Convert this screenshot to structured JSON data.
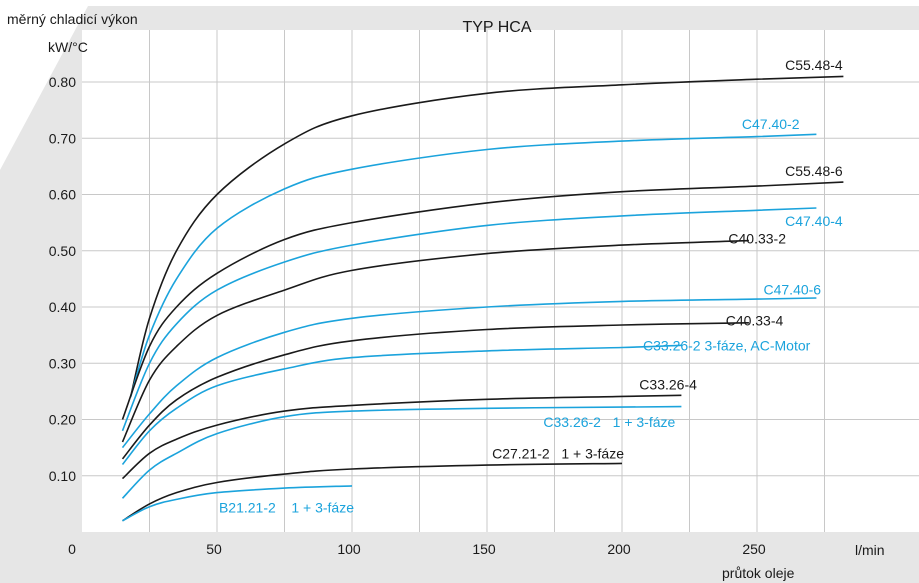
{
  "chart_data": {
    "type": "line",
    "title": "TYP HCA",
    "ylabel": "měrný chladicí výkon",
    "yunit": "kW/°C",
    "xlabel": "průtok oleje",
    "xunit": "l/min",
    "xlim": [
      0,
      280
    ],
    "ylim": [
      0,
      0.84
    ],
    "xticks": [
      0,
      50,
      100,
      150,
      200,
      250
    ],
    "xtick_labels": [
      "0",
      "50",
      "100",
      "150",
      "200",
      "250"
    ],
    "yticks": [
      0.1,
      0.2,
      0.3,
      0.4,
      0.5,
      0.6,
      0.7,
      0.8
    ],
    "ytick_labels": [
      "0.10",
      "0.20",
      "0.30",
      "0.40",
      "0.50",
      "0.60",
      "0.70",
      "0.80"
    ],
    "grid": true,
    "colors": {
      "black": "#1a1a1a",
      "blue": "#1ba3dc",
      "grid": "#c8c8c8",
      "background_shape": "#e6e6e6"
    },
    "series": [
      {
        "name": "C55.48-4",
        "color": "black",
        "x": [
          18,
          25,
          35,
          50,
          75,
          100,
          150,
          200,
          250,
          282
        ],
        "y": [
          0.24,
          0.38,
          0.5,
          0.6,
          0.69,
          0.74,
          0.78,
          0.795,
          0.805,
          0.81
        ]
      },
      {
        "name": "C47.40-2",
        "color": "blue",
        "x": [
          18,
          25,
          35,
          50,
          75,
          100,
          150,
          200,
          250,
          272
        ],
        "y": [
          0.24,
          0.35,
          0.45,
          0.54,
          0.61,
          0.645,
          0.68,
          0.695,
          0.703,
          0.707
        ]
      },
      {
        "name": "C55.48-6",
        "color": "black",
        "x": [
          15,
          25,
          35,
          50,
          75,
          100,
          150,
          200,
          250,
          282
        ],
        "y": [
          0.2,
          0.33,
          0.4,
          0.46,
          0.52,
          0.55,
          0.585,
          0.605,
          0.615,
          0.622
        ]
      },
      {
        "name": "C47.40-4",
        "color": "blue",
        "x": [
          15,
          25,
          35,
          50,
          75,
          100,
          150,
          200,
          250,
          272
        ],
        "y": [
          0.18,
          0.3,
          0.37,
          0.43,
          0.48,
          0.51,
          0.545,
          0.562,
          0.572,
          0.576
        ]
      },
      {
        "name": "C40.33-2",
        "color": "black",
        "x": [
          15,
          25,
          35,
          50,
          75,
          100,
          150,
          200,
          247
        ],
        "y": [
          0.16,
          0.27,
          0.33,
          0.385,
          0.43,
          0.465,
          0.495,
          0.51,
          0.518
        ]
      },
      {
        "name": "C47.40-6",
        "color": "blue",
        "x": [
          15,
          25,
          35,
          50,
          75,
          100,
          150,
          200,
          250,
          272
        ],
        "y": [
          0.15,
          0.21,
          0.26,
          0.31,
          0.355,
          0.38,
          0.4,
          0.41,
          0.414,
          0.416
        ]
      },
      {
        "name": "C40.33-4",
        "color": "black",
        "x": [
          15,
          25,
          35,
          50,
          75,
          100,
          150,
          200,
          247
        ],
        "y": [
          0.13,
          0.19,
          0.235,
          0.275,
          0.315,
          0.34,
          0.36,
          0.368,
          0.372
        ]
      },
      {
        "name": "C33.26-2 3-fáze, AC-Motor",
        "color": "blue",
        "x": [
          15,
          25,
          35,
          50,
          75,
          100,
          150,
          200,
          222
        ],
        "y": [
          0.12,
          0.18,
          0.22,
          0.26,
          0.29,
          0.31,
          0.322,
          0.328,
          0.332
        ]
      },
      {
        "name": "C33.26-4",
        "color": "black",
        "x": [
          15,
          25,
          35,
          50,
          75,
          100,
          150,
          200,
          222
        ],
        "y": [
          0.095,
          0.14,
          0.165,
          0.19,
          0.215,
          0.225,
          0.236,
          0.241,
          0.243
        ]
      },
      {
        "name": "C33.26-2 1 + 3-fáze",
        "color": "blue",
        "x": [
          15,
          25,
          35,
          50,
          75,
          100,
          150,
          200,
          222
        ],
        "y": [
          0.06,
          0.11,
          0.14,
          0.175,
          0.205,
          0.215,
          0.22,
          0.222,
          0.223
        ]
      },
      {
        "name": "C27.21-2 1 + 3-fáze",
        "color": "black",
        "x": [
          15,
          25,
          35,
          50,
          75,
          100,
          150,
          200
        ],
        "y": [
          0.02,
          0.05,
          0.07,
          0.088,
          0.103,
          0.112,
          0.119,
          0.122
        ]
      },
      {
        "name": "B21.21-2 1 + 3-fáze",
        "color": "blue",
        "x": [
          15,
          25,
          35,
          50,
          75,
          100
        ],
        "y": [
          0.02,
          0.045,
          0.058,
          0.07,
          0.078,
          0.082
        ]
      }
    ],
    "curve_labels": [
      {
        "text": "C55.48-4",
        "color": "black",
        "x": 281,
        "y": 0.83
      },
      {
        "text": "C47.40-2",
        "color": "blue",
        "x": 265,
        "y": 0.725
      },
      {
        "text": "C55.48-6",
        "color": "black",
        "x": 281,
        "y": 0.642
      },
      {
        "text": "C47.40-4",
        "color": "blue",
        "x": 281,
        "y": 0.553
      },
      {
        "text": "C40.33-2",
        "color": "black",
        "x": 260,
        "y": 0.522
      },
      {
        "text": "C47.40-6",
        "color": "blue",
        "x": 273,
        "y": 0.431
      },
      {
        "text": "C40.33-4",
        "color": "black",
        "x": 259,
        "y": 0.376
      },
      {
        "text": "C33.26-2 3-fáze, AC-Motor",
        "color": "blue",
        "x": 269,
        "y": 0.332
      },
      {
        "text": "C33.26-4",
        "color": "black",
        "x": 227,
        "y": 0.262
      },
      {
        "text": "C33.26-2   1 + 3-fáze",
        "color": "blue",
        "x": 219,
        "y": 0.196
      },
      {
        "text": "C27.21-2   1 + 3-fáze",
        "color": "black",
        "x": 200,
        "y": 0.14
      },
      {
        "text": "B21.21-2    1 + 3-fáze",
        "color": "blue",
        "x": 100,
        "y": 0.044
      }
    ]
  }
}
